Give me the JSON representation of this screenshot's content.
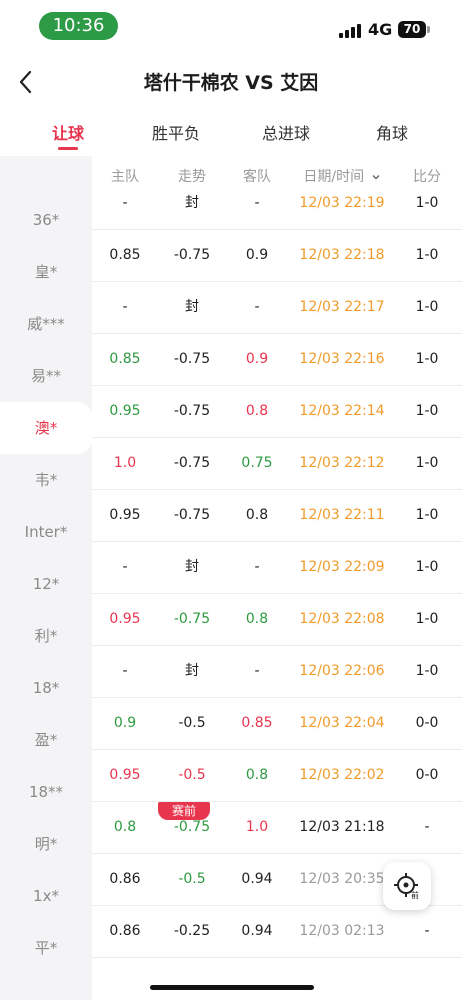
{
  "status_bar": {
    "time": "10:36",
    "network": "4G",
    "battery": "70"
  },
  "header": {
    "title": "塔什干棉农 VS 艾因"
  },
  "tabs": [
    {
      "label": "让球",
      "active": true
    },
    {
      "label": "胜平负",
      "active": false
    },
    {
      "label": "总进球",
      "active": false
    },
    {
      "label": "角球",
      "active": false
    }
  ],
  "sidebar": {
    "items": [
      "36*",
      "皇*",
      "威***",
      "易**",
      "澳*",
      "韦*",
      "Inter*",
      "12*",
      "利*",
      "18*",
      "盈*",
      "18**",
      "明*",
      "1x*",
      "平*"
    ],
    "active_index": 4
  },
  "table": {
    "headers": {
      "home": "主队",
      "trend": "走势",
      "away": "客队",
      "date": "日期/时间",
      "score": "比分"
    },
    "rows": [
      {
        "home": "-",
        "trend": "封",
        "away": "-",
        "date": "12/03 22:19",
        "score": "1-0",
        "home_color": "dark",
        "trend_color": "dark",
        "away_color": "dark",
        "date_color": "orange"
      },
      {
        "home": "0.85",
        "trend": "-0.75",
        "away": "0.9",
        "date": "12/03 22:18",
        "score": "1-0",
        "home_color": "dark",
        "trend_color": "dark",
        "away_color": "dark",
        "date_color": "orange"
      },
      {
        "home": "-",
        "trend": "封",
        "away": "-",
        "date": "12/03 22:17",
        "score": "1-0",
        "home_color": "dark",
        "trend_color": "dark",
        "away_color": "dark",
        "date_color": "orange"
      },
      {
        "home": "0.85",
        "trend": "-0.75",
        "away": "0.9",
        "date": "12/03 22:16",
        "score": "1-0",
        "home_color": "green",
        "trend_color": "dark",
        "away_color": "red",
        "date_color": "orange"
      },
      {
        "home": "0.95",
        "trend": "-0.75",
        "away": "0.8",
        "date": "12/03 22:14",
        "score": "1-0",
        "home_color": "green",
        "trend_color": "dark",
        "away_color": "red",
        "date_color": "orange"
      },
      {
        "home": "1.0",
        "trend": "-0.75",
        "away": "0.75",
        "date": "12/03 22:12",
        "score": "1-0",
        "home_color": "red",
        "trend_color": "dark",
        "away_color": "green",
        "date_color": "orange"
      },
      {
        "home": "0.95",
        "trend": "-0.75",
        "away": "0.8",
        "date": "12/03 22:11",
        "score": "1-0",
        "home_color": "dark",
        "trend_color": "dark",
        "away_color": "dark",
        "date_color": "orange"
      },
      {
        "home": "-",
        "trend": "封",
        "away": "-",
        "date": "12/03 22:09",
        "score": "1-0",
        "home_color": "dark",
        "trend_color": "dark",
        "away_color": "dark",
        "date_color": "orange"
      },
      {
        "home": "0.95",
        "trend": "-0.75",
        "away": "0.8",
        "date": "12/03 22:08",
        "score": "1-0",
        "home_color": "red",
        "trend_color": "green",
        "away_color": "green",
        "date_color": "orange"
      },
      {
        "home": "-",
        "trend": "封",
        "away": "-",
        "date": "12/03 22:06",
        "score": "1-0",
        "home_color": "dark",
        "trend_color": "dark",
        "away_color": "dark",
        "date_color": "orange"
      },
      {
        "home": "0.9",
        "trend": "-0.5",
        "away": "0.85",
        "date": "12/03 22:04",
        "score": "0-0",
        "home_color": "green",
        "trend_color": "dark",
        "away_color": "red",
        "date_color": "orange"
      },
      {
        "home": "0.95",
        "trend": "-0.5",
        "away": "0.8",
        "date": "12/03 22:02",
        "score": "0-0",
        "home_color": "red",
        "trend_color": "red",
        "away_color": "green",
        "date_color": "orange"
      },
      {
        "home": "0.8",
        "trend": "-0.75",
        "away": "1.0",
        "date": "12/03 21:18",
        "score": "-",
        "home_color": "green",
        "trend_color": "green",
        "away_color": "red",
        "date_color": "dark"
      },
      {
        "home": "0.86",
        "trend": "-0.5",
        "away": "0.94",
        "date": "12/03 20:35",
        "score": "-",
        "home_color": "dark",
        "trend_color": "green",
        "away_color": "dark",
        "date_color": "grey"
      },
      {
        "home": "0.86",
        "trend": "-0.25",
        "away": "0.94",
        "date": "12/03 02:13",
        "score": "-",
        "home_color": "dark",
        "trend_color": "dark",
        "away_color": "dark",
        "date_color": "grey"
      }
    ]
  },
  "pre_match_badge": "赛前",
  "fab": {
    "label": "前",
    "icon": "locate-icon"
  },
  "colors": {
    "accent": "#e8354e",
    "green": "#2e9a3f",
    "orange": "#f29b2a",
    "status_pill": "#2d9a46"
  }
}
